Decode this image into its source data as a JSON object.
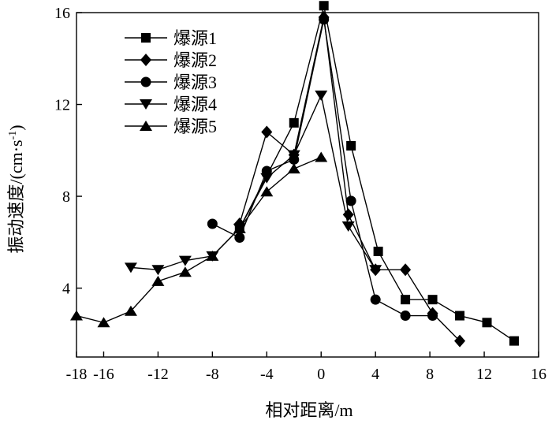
{
  "chart_data": {
    "type": "line",
    "title": "",
    "xlabel": "相对距离/m",
    "ylabel_main": "振动速度/",
    "ylabel_unit_pre": "(cm·s",
    "ylabel_unit_sup": "-1",
    "ylabel_unit_post": ")",
    "xlim": [
      -18,
      16
    ],
    "ylim": [
      1,
      16
    ],
    "xticks": [
      -18,
      -16,
      -12,
      -8,
      -4,
      0,
      4,
      8,
      12,
      16
    ],
    "xtick_labels": [
      "-18",
      "-16",
      "-12",
      "-8",
      "-4",
      "0",
      "4",
      "8",
      "12",
      "16"
    ],
    "yticks": [
      4,
      8,
      12,
      16
    ],
    "ytick_labels": [
      "4",
      "8",
      "12",
      "16"
    ],
    "grid": false,
    "legend_position": "top-left",
    "series": [
      {
        "name": "爆源1",
        "marker": "square",
        "points": [
          [
            -6,
            6.6
          ],
          [
            -2,
            11.2
          ],
          [
            0.2,
            16.3
          ],
          [
            2.2,
            10.2
          ],
          [
            4.2,
            5.6
          ],
          [
            6.2,
            3.5
          ],
          [
            8.2,
            3.5
          ],
          [
            10.2,
            2.8
          ],
          [
            12.2,
            2.5
          ],
          [
            14.2,
            1.7
          ]
        ]
      },
      {
        "name": "爆源2",
        "marker": "diamond",
        "points": [
          [
            -6,
            6.8
          ],
          [
            -4,
            10.8
          ],
          [
            -2,
            9.8
          ],
          [
            0.2,
            15.8
          ],
          [
            2,
            7.2
          ],
          [
            4,
            4.8
          ],
          [
            6.2,
            4.8
          ],
          [
            8.2,
            2.9
          ],
          [
            10.2,
            1.7
          ]
        ]
      },
      {
        "name": "爆源3",
        "marker": "circle",
        "points": [
          [
            -8,
            6.8
          ],
          [
            -6,
            6.2
          ],
          [
            -4,
            9.1
          ],
          [
            -2,
            9.6
          ],
          [
            0.2,
            15.7
          ],
          [
            2.2,
            7.8
          ],
          [
            4,
            3.5
          ],
          [
            6.2,
            2.8
          ],
          [
            8.2,
            2.8
          ]
        ]
      },
      {
        "name": "爆源4",
        "marker": "triangle-down",
        "points": [
          [
            -14,
            4.9
          ],
          [
            -12,
            4.8
          ],
          [
            -10,
            5.2
          ],
          [
            -8,
            5.4
          ],
          [
            -6,
            6.6
          ],
          [
            -4,
            8.8
          ],
          [
            -2,
            9.8
          ],
          [
            0,
            12.4
          ],
          [
            2,
            6.7
          ],
          [
            4,
            4.8
          ]
        ]
      },
      {
        "name": "爆源5",
        "marker": "triangle-up",
        "points": [
          [
            -18,
            2.8
          ],
          [
            -16,
            2.5
          ],
          [
            -14,
            3.0
          ],
          [
            -12,
            4.3
          ],
          [
            -10,
            4.7
          ],
          [
            -8,
            5.4
          ],
          [
            -6,
            6.6
          ],
          [
            -4,
            8.2
          ],
          [
            -2,
            9.2
          ],
          [
            0,
            9.7
          ]
        ]
      }
    ]
  }
}
